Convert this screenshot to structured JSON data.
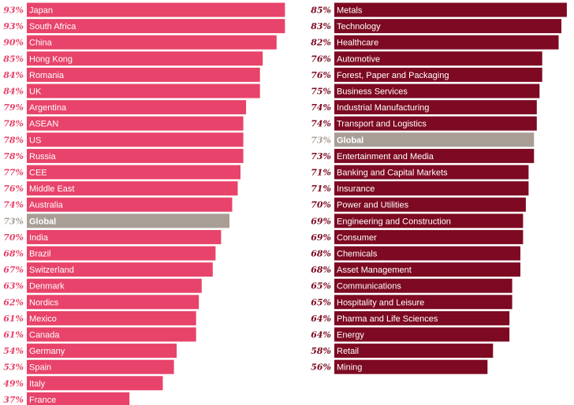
{
  "chart_data": [
    {
      "type": "bar",
      "orientation": "horizontal",
      "unit": "%",
      "colors": {
        "bar": "#e8436a",
        "highlight": "#a89e96",
        "value_text": "#e8436a",
        "value_text_highlight": "#a89e96"
      },
      "highlight": "Global",
      "categories": [
        "Japan",
        "South Africa",
        "China",
        "Hong Kong",
        "Romania",
        "UK",
        "Argentina",
        "ASEAN",
        "US",
        "Russia",
        "CEE",
        "Middle East",
        "Australia",
        "Global",
        "India",
        "Brazil",
        "Switzerland",
        "Denmark",
        "Nordics",
        "Mexico",
        "Canada",
        "Germany",
        "Spain",
        "Italy",
        "France"
      ],
      "values": [
        93,
        93,
        90,
        85,
        84,
        84,
        79,
        78,
        78,
        78,
        77,
        76,
        74,
        73,
        70,
        68,
        67,
        63,
        62,
        61,
        61,
        54,
        53,
        49,
        37
      ],
      "value_labels": [
        "93%",
        "93%",
        "90%",
        "85%",
        "84%",
        "84%",
        "79%",
        "78%",
        "78%",
        "78%",
        "77%",
        "76%",
        "74%",
        "73%",
        "70%",
        "68%",
        "67%",
        "63%",
        "62%",
        "61%",
        "61%",
        "54%",
        "53%",
        "49%",
        "37%"
      ]
    },
    {
      "type": "bar",
      "orientation": "horizontal",
      "unit": "%",
      "colors": {
        "bar": "#7d0a22",
        "highlight": "#a89e96",
        "value_text": "#7d0a22",
        "value_text_highlight": "#a89e96"
      },
      "highlight": "Global",
      "categories": [
        "Metals",
        "Technology",
        "Healthcare",
        "Automotive",
        "Forest, Paper and Packaging",
        "Business Services",
        "Industrial Manufacturing",
        "Transport and Logistics",
        "Global",
        "Entertainment and Media",
        "Banking and Capital Markets",
        "Insurance",
        "Power and Utilities",
        "Engineering and Construction",
        "Consumer",
        "Chemicals",
        "Asset Management",
        "Communications",
        "Hospitality and Leisure",
        "Pharma and Life Sciences",
        "Energy",
        "Retail",
        "Mining"
      ],
      "values": [
        85,
        83,
        82,
        76,
        76,
        75,
        74,
        74,
        73,
        73,
        71,
        71,
        70,
        69,
        69,
        68,
        68,
        65,
        65,
        64,
        64,
        58,
        56
      ],
      "value_labels": [
        "85%",
        "83%",
        "82%",
        "76%",
        "76%",
        "75%",
        "74%",
        "74%",
        "73%",
        "73%",
        "71%",
        "71%",
        "70%",
        "69%",
        "69%",
        "68%",
        "68%",
        "65%",
        "65%",
        "64%",
        "64%",
        "58%",
        "56%"
      ]
    }
  ]
}
